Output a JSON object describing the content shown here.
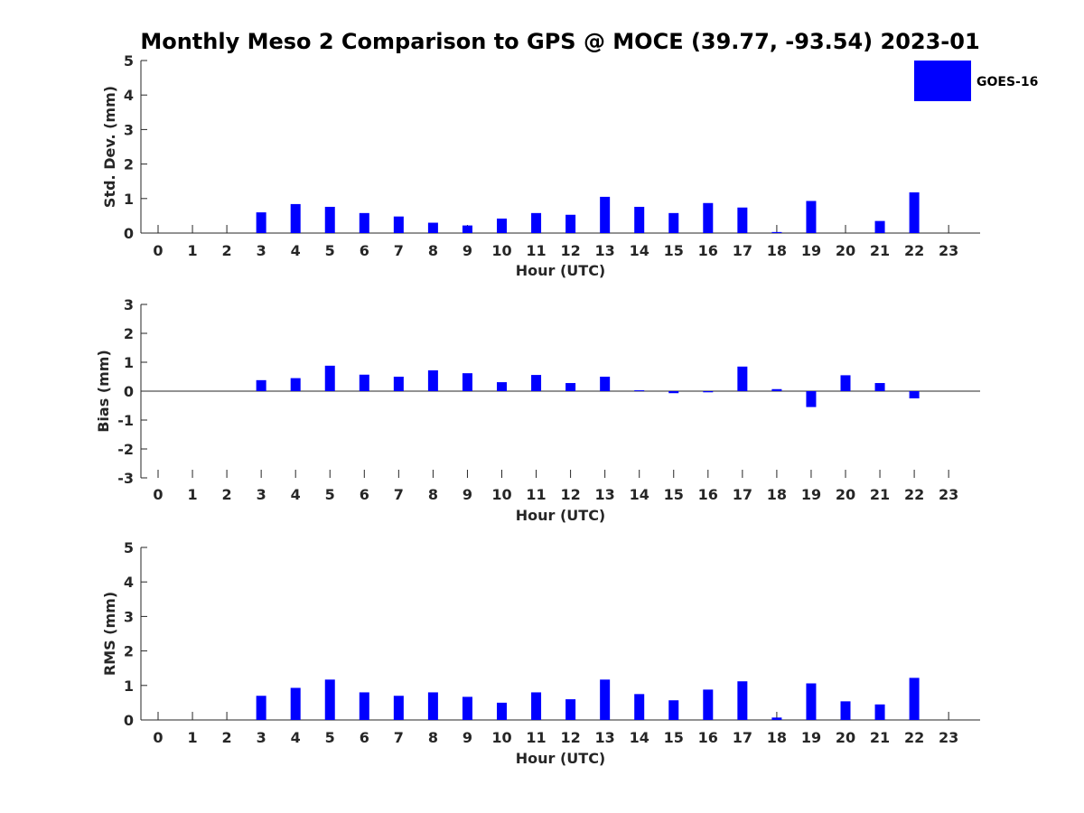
{
  "title": "Monthly Meso 2 Comparison to GPS @ MOCE (39.77, -93.54) 2023-01",
  "legend": {
    "label": "GOES-16",
    "color": "#0000ff"
  },
  "chart_data": [
    {
      "type": "bar",
      "xlabel": "Hour (UTC)",
      "ylabel": "Std. Dev. (mm)",
      "ylim": [
        0,
        5
      ],
      "yticks": [
        0,
        1,
        2,
        3,
        4,
        5
      ],
      "categories": [
        "0",
        "1",
        "2",
        "3",
        "4",
        "5",
        "6",
        "7",
        "8",
        "9",
        "10",
        "11",
        "12",
        "13",
        "14",
        "15",
        "16",
        "17",
        "18",
        "19",
        "20",
        "21",
        "22",
        "23"
      ],
      "series": [
        {
          "name": "GOES-16",
          "values": [
            null,
            null,
            null,
            0.6,
            0.84,
            0.76,
            0.58,
            0.48,
            0.3,
            0.22,
            0.42,
            0.58,
            0.53,
            1.05,
            0.76,
            0.58,
            0.87,
            0.74,
            0.03,
            0.93,
            null,
            0.35,
            1.18,
            null
          ]
        }
      ]
    },
    {
      "type": "bar",
      "xlabel": "Hour (UTC)",
      "ylabel": "Bias (mm)",
      "ylim": [
        -3,
        3
      ],
      "yticks": [
        -3,
        -2,
        -1,
        0,
        1,
        2,
        3
      ],
      "categories": [
        "0",
        "1",
        "2",
        "3",
        "4",
        "5",
        "6",
        "7",
        "8",
        "9",
        "10",
        "11",
        "12",
        "13",
        "14",
        "15",
        "16",
        "17",
        "18",
        "19",
        "20",
        "21",
        "22",
        "23"
      ],
      "series": [
        {
          "name": "GOES-16",
          "values": [
            null,
            null,
            null,
            0.38,
            0.45,
            0.88,
            0.57,
            0.5,
            0.72,
            0.62,
            0.31,
            0.56,
            0.28,
            0.5,
            0.03,
            -0.07,
            -0.04,
            0.85,
            0.07,
            -0.55,
            0.55,
            0.28,
            -0.25,
            null
          ]
        }
      ]
    },
    {
      "type": "bar",
      "xlabel": "Hour (UTC)",
      "ylabel": "RMS (mm)",
      "ylim": [
        0,
        5
      ],
      "yticks": [
        0,
        1,
        2,
        3,
        4,
        5
      ],
      "categories": [
        "0",
        "1",
        "2",
        "3",
        "4",
        "5",
        "6",
        "7",
        "8",
        "9",
        "10",
        "11",
        "12",
        "13",
        "14",
        "15",
        "16",
        "17",
        "18",
        "19",
        "20",
        "21",
        "22",
        "23"
      ],
      "series": [
        {
          "name": "GOES-16",
          "values": [
            null,
            null,
            null,
            0.7,
            0.93,
            1.17,
            0.8,
            0.7,
            0.8,
            0.67,
            0.5,
            0.8,
            0.6,
            1.17,
            0.75,
            0.57,
            0.88,
            1.12,
            0.07,
            1.06,
            0.54,
            0.45,
            1.22,
            null
          ]
        }
      ]
    }
  ]
}
